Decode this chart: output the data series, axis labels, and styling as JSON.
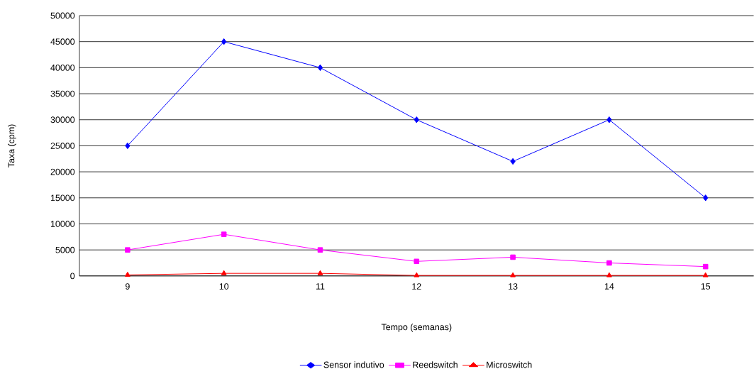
{
  "chart_data": {
    "type": "line",
    "xlabel": "Tempo (semanas)",
    "ylabel": "Taxa (cpm)",
    "categories": [
      "9",
      "10",
      "11",
      "12",
      "13",
      "14",
      "15"
    ],
    "series": [
      {
        "name": "Sensor indutivo",
        "color": "#0000ff",
        "marker": "diamond",
        "values": [
          25000,
          45000,
          40000,
          30000,
          22000,
          30000,
          15000
        ]
      },
      {
        "name": "Reedswitch",
        "color": "#ff00ff",
        "marker": "square",
        "values": [
          5000,
          8000,
          5000,
          2800,
          3600,
          2500,
          1800
        ]
      },
      {
        "name": "Microswitch",
        "color": "#ff0000",
        "marker": "triangle",
        "values": [
          200,
          500,
          500,
          100,
          100,
          100,
          100
        ]
      }
    ],
    "ylim": [
      0,
      50000
    ],
    "yticks": [
      0,
      5000,
      10000,
      15000,
      20000,
      25000,
      30000,
      35000,
      40000,
      45000,
      50000
    ],
    "grid": "y",
    "legend": "bottom",
    "line_style": "solid"
  }
}
